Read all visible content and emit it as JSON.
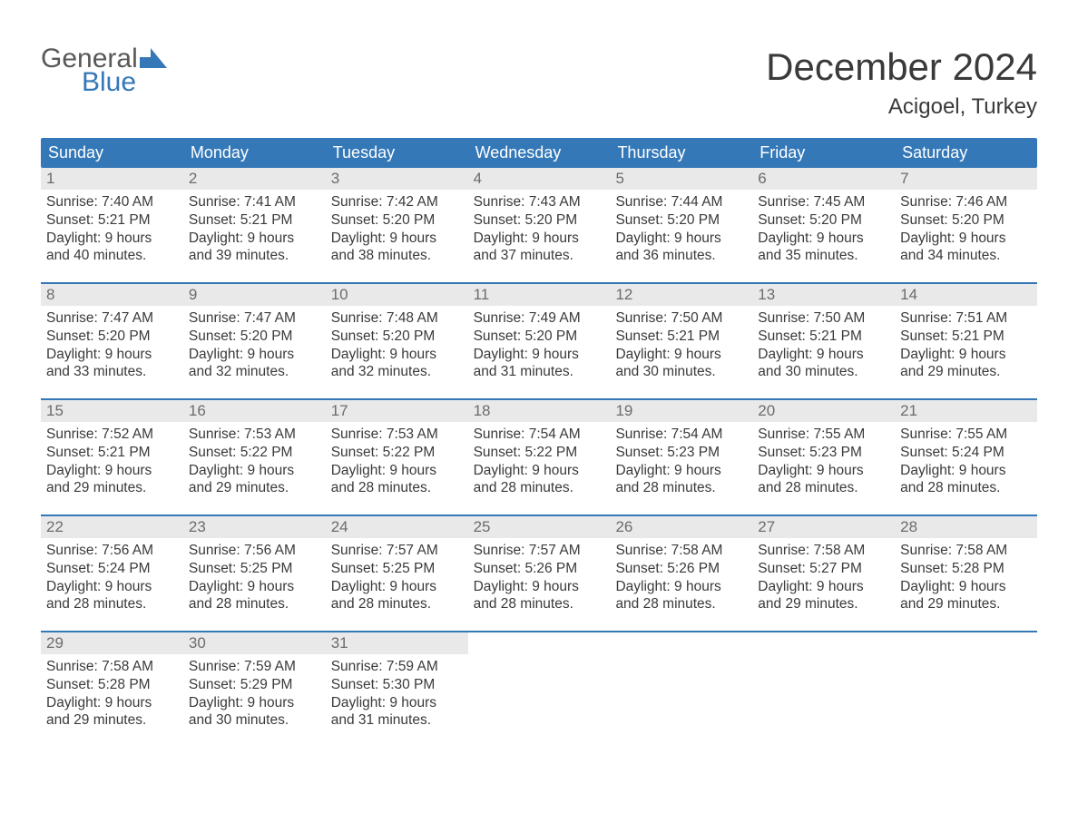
{
  "logo": {
    "general": "General",
    "blue": "Blue"
  },
  "title": "December 2024",
  "location": "Acigoel, Turkey",
  "colors": {
    "header_bg": "#3478b8",
    "header_text": "#ffffff",
    "daynum_bg": "#e9e9e9",
    "daynum_text": "#6c6c6c",
    "body_text": "#3a3a3a",
    "week_border": "#3478b8",
    "page_bg": "#ffffff"
  },
  "weekdays": [
    "Sunday",
    "Monday",
    "Tuesday",
    "Wednesday",
    "Thursday",
    "Friday",
    "Saturday"
  ],
  "weeks": [
    [
      {
        "n": "1",
        "sunrise": "7:40 AM",
        "sunset": "5:21 PM",
        "dh": "9",
        "dm": "40"
      },
      {
        "n": "2",
        "sunrise": "7:41 AM",
        "sunset": "5:21 PM",
        "dh": "9",
        "dm": "39"
      },
      {
        "n": "3",
        "sunrise": "7:42 AM",
        "sunset": "5:20 PM",
        "dh": "9",
        "dm": "38"
      },
      {
        "n": "4",
        "sunrise": "7:43 AM",
        "sunset": "5:20 PM",
        "dh": "9",
        "dm": "37"
      },
      {
        "n": "5",
        "sunrise": "7:44 AM",
        "sunset": "5:20 PM",
        "dh": "9",
        "dm": "36"
      },
      {
        "n": "6",
        "sunrise": "7:45 AM",
        "sunset": "5:20 PM",
        "dh": "9",
        "dm": "35"
      },
      {
        "n": "7",
        "sunrise": "7:46 AM",
        "sunset": "5:20 PM",
        "dh": "9",
        "dm": "34"
      }
    ],
    [
      {
        "n": "8",
        "sunrise": "7:47 AM",
        "sunset": "5:20 PM",
        "dh": "9",
        "dm": "33"
      },
      {
        "n": "9",
        "sunrise": "7:47 AM",
        "sunset": "5:20 PM",
        "dh": "9",
        "dm": "32"
      },
      {
        "n": "10",
        "sunrise": "7:48 AM",
        "sunset": "5:20 PM",
        "dh": "9",
        "dm": "32"
      },
      {
        "n": "11",
        "sunrise": "7:49 AM",
        "sunset": "5:20 PM",
        "dh": "9",
        "dm": "31"
      },
      {
        "n": "12",
        "sunrise": "7:50 AM",
        "sunset": "5:21 PM",
        "dh": "9",
        "dm": "30"
      },
      {
        "n": "13",
        "sunrise": "7:50 AM",
        "sunset": "5:21 PM",
        "dh": "9",
        "dm": "30"
      },
      {
        "n": "14",
        "sunrise": "7:51 AM",
        "sunset": "5:21 PM",
        "dh": "9",
        "dm": "29"
      }
    ],
    [
      {
        "n": "15",
        "sunrise": "7:52 AM",
        "sunset": "5:21 PM",
        "dh": "9",
        "dm": "29"
      },
      {
        "n": "16",
        "sunrise": "7:53 AM",
        "sunset": "5:22 PM",
        "dh": "9",
        "dm": "29"
      },
      {
        "n": "17",
        "sunrise": "7:53 AM",
        "sunset": "5:22 PM",
        "dh": "9",
        "dm": "28"
      },
      {
        "n": "18",
        "sunrise": "7:54 AM",
        "sunset": "5:22 PM",
        "dh": "9",
        "dm": "28"
      },
      {
        "n": "19",
        "sunrise": "7:54 AM",
        "sunset": "5:23 PM",
        "dh": "9",
        "dm": "28"
      },
      {
        "n": "20",
        "sunrise": "7:55 AM",
        "sunset": "5:23 PM",
        "dh": "9",
        "dm": "28"
      },
      {
        "n": "21",
        "sunrise": "7:55 AM",
        "sunset": "5:24 PM",
        "dh": "9",
        "dm": "28"
      }
    ],
    [
      {
        "n": "22",
        "sunrise": "7:56 AM",
        "sunset": "5:24 PM",
        "dh": "9",
        "dm": "28"
      },
      {
        "n": "23",
        "sunrise": "7:56 AM",
        "sunset": "5:25 PM",
        "dh": "9",
        "dm": "28"
      },
      {
        "n": "24",
        "sunrise": "7:57 AM",
        "sunset": "5:25 PM",
        "dh": "9",
        "dm": "28"
      },
      {
        "n": "25",
        "sunrise": "7:57 AM",
        "sunset": "5:26 PM",
        "dh": "9",
        "dm": "28"
      },
      {
        "n": "26",
        "sunrise": "7:58 AM",
        "sunset": "5:26 PM",
        "dh": "9",
        "dm": "28"
      },
      {
        "n": "27",
        "sunrise": "7:58 AM",
        "sunset": "5:27 PM",
        "dh": "9",
        "dm": "29"
      },
      {
        "n": "28",
        "sunrise": "7:58 AM",
        "sunset": "5:28 PM",
        "dh": "9",
        "dm": "29"
      }
    ],
    [
      {
        "n": "29",
        "sunrise": "7:58 AM",
        "sunset": "5:28 PM",
        "dh": "9",
        "dm": "29"
      },
      {
        "n": "30",
        "sunrise": "7:59 AM",
        "sunset": "5:29 PM",
        "dh": "9",
        "dm": "30"
      },
      {
        "n": "31",
        "sunrise": "7:59 AM",
        "sunset": "5:30 PM",
        "dh": "9",
        "dm": "31"
      },
      null,
      null,
      null,
      null
    ]
  ],
  "labels": {
    "sunrise": "Sunrise: ",
    "sunset": "Sunset: ",
    "daylight_prefix": "Daylight: ",
    "hours_word": " hours",
    "and_word": "and ",
    "minutes_word": " minutes."
  }
}
